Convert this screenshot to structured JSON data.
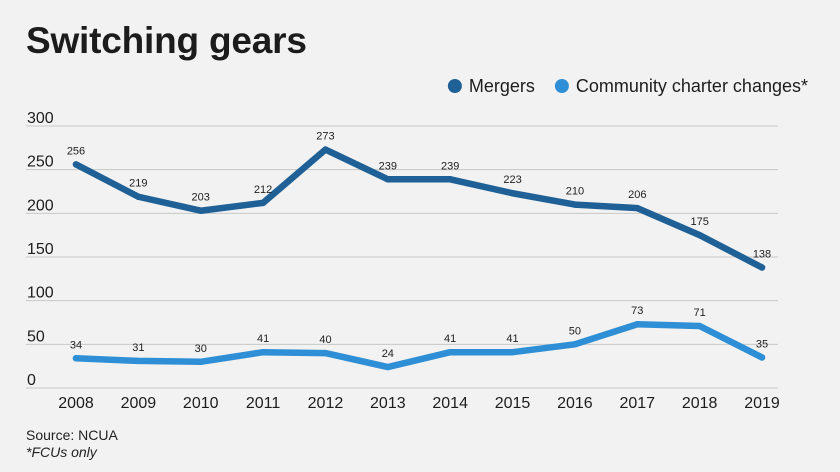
{
  "chart_data": {
    "type": "line",
    "title": "Switching gears",
    "categories": [
      "2008",
      "2009",
      "2010",
      "2011",
      "2012",
      "2013",
      "2014",
      "2015",
      "2016",
      "2017",
      "2018",
      "2019"
    ],
    "series": [
      {
        "name": "Mergers",
        "color": "#1f6096",
        "values": [
          256,
          219,
          203,
          212,
          273,
          239,
          239,
          223,
          210,
          206,
          175,
          138
        ]
      },
      {
        "name": "Community charter changes*",
        "color": "#2f8fd6",
        "values": [
          34,
          31,
          30,
          41,
          40,
          24,
          41,
          41,
          50,
          73,
          71,
          35
        ]
      }
    ],
    "yticks": [
      0,
      50,
      100,
      150,
      200,
      250,
      300
    ],
    "ylim": [
      0,
      300
    ],
    "grid": true,
    "legend_position": "top-right",
    "data_labels": true
  },
  "source": "Source: NCUA",
  "footnote": "*FCUs only"
}
